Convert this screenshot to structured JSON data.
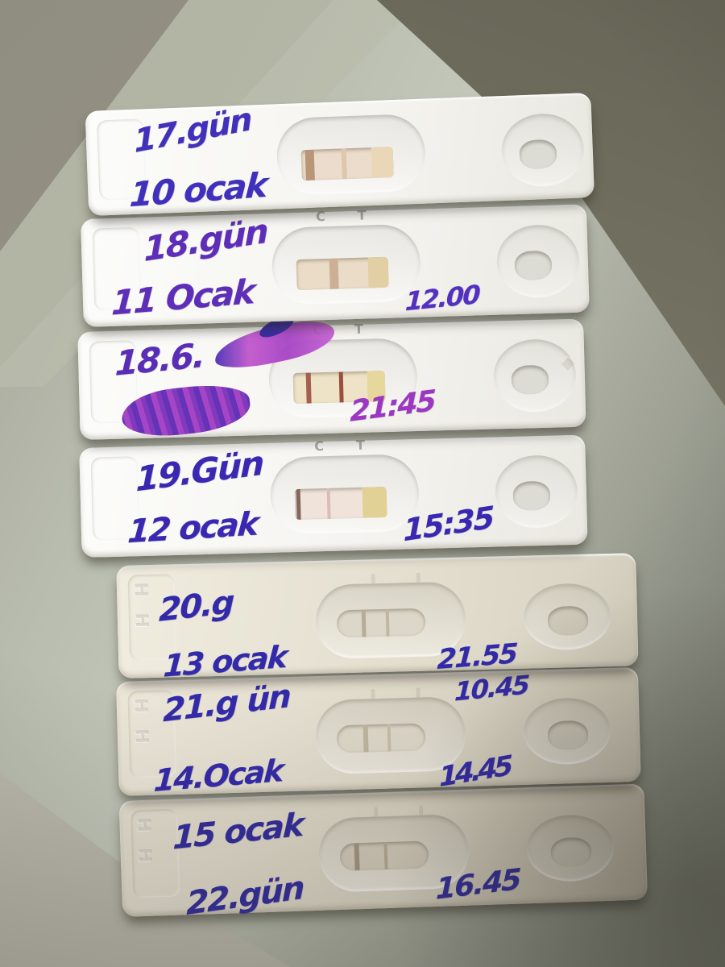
{
  "scene": {
    "type": "photograph",
    "subject": "Seven white lateral-flow test cassettes laid in rows on a grey-green counter, each hand-annotated in blue and purple marker with cycle day (gun), date in January (Ocak) and time of test",
    "language": "Turkish",
    "ink_blue": "#3a28b2",
    "ink_purple": "#9d37c2",
    "cassette_white": "#f5f4ef",
    "surface_color": "#c3c7ba",
    "shadow_corner_color": "#676556"
  },
  "cassette_labels": {
    "c": "C",
    "t": "T"
  },
  "tests": [
    {
      "line1": "17.gün",
      "line2": "10 ocak",
      "result": "strong line at left edge of window, very faint second line"
    },
    {
      "line1": "18.gün",
      "line2": "11 Ocak",
      "time": "12.00",
      "result": "single faint control line in window"
    },
    {
      "line1": "18.6.",
      "time": "21:45",
      "scribble_top": "smeared magenta ink streak after day label",
      "scribble_bottom": "scribbled-out illegible time at lower left",
      "result": "control and test lines both clearly visible"
    },
    {
      "line1": "19.Gün",
      "line2": "12 ocak",
      "time": "15:35",
      "result": "dark line at window edge, faint pink test line, yellowish zone at right"
    },
    {
      "line1": "20.g",
      "line2": "13 ocak",
      "time": "21.55",
      "result": "two faint lines"
    },
    {
      "line1": "21.g ün",
      "line2": "14.Ocak",
      "time_top": "10.45",
      "time": "14.45",
      "result": "two faint lines"
    },
    {
      "line1": "15 ocak",
      "line2": "22.gün",
      "time": "16.45",
      "result": "control line visible, faint test line"
    }
  ]
}
